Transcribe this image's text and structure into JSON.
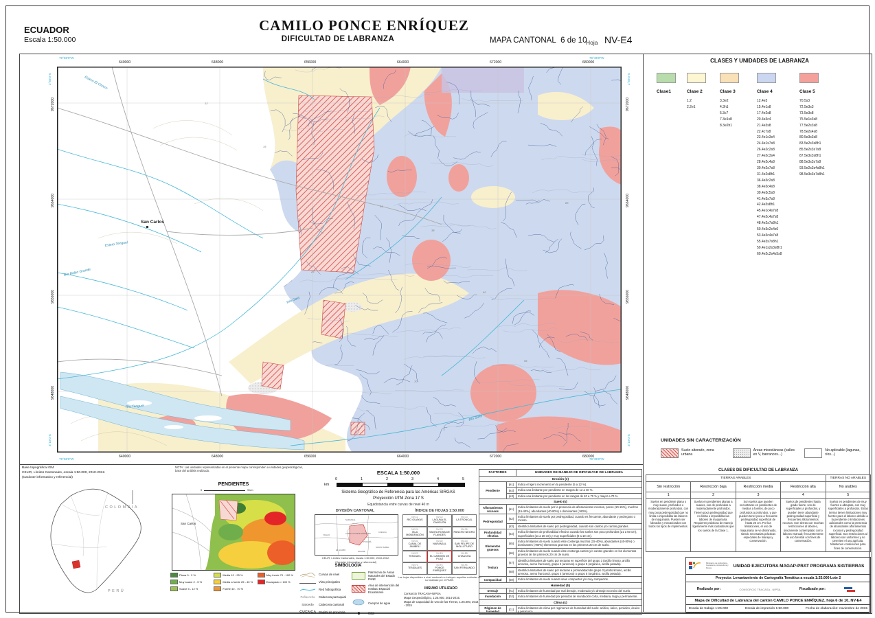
{
  "header": {
    "country": "ECUADOR",
    "country_scale": "Escala 1:50.000",
    "title": "CAMILO PONCE ENRÍQUEZ",
    "subtitle": "DIFICULTAD DE LABRANZA",
    "map_type": "MAPA CANTONAL",
    "sheet_count": "6 de 10",
    "sheet_label": "Hoja",
    "sheet_code": "NV-E4"
  },
  "map": {
    "eastings": [
      "640000",
      "648000",
      "656000",
      "664000",
      "672000",
      "680000"
    ],
    "northings": [
      "9672000",
      "9664000",
      "9656000",
      "9648000"
    ],
    "geo_corners": {
      "nw_lon": "79°55'0\"W",
      "ne_lon": "79°35'0\"W",
      "n_lat": "2°55'0\"S",
      "s_lat": "3°15'0\"S"
    },
    "places": [
      "San Carlos"
    ],
    "rivers": [
      "Estero El Chorro",
      "Estero Tenguel",
      "Río Balao Grande",
      "Río Gala",
      "Río Tenguel",
      "Río Siete"
    ],
    "unit_labels": [
      "12",
      "15",
      "17",
      "21",
      "26",
      "38",
      "42",
      "55",
      "70",
      "83"
    ]
  },
  "legend": {
    "title": "CLASES Y UNIDADES DE LABRANZA",
    "classes": [
      {
        "name": "Clase1",
        "color": "#b8dcab",
        "units": []
      },
      {
        "name": "Clase 2",
        "color": "#fdf6d2",
        "units": [
          "1.2",
          "2.2e1"
        ]
      },
      {
        "name": "Clase 3",
        "color": "#f9e0b6",
        "units": [
          "3.3e2",
          "4.3h1",
          "5.3c7",
          "7.3e1s8",
          "8.3e2h1"
        ]
      },
      {
        "name": "Clase 4",
        "color": "#cbd7f0",
        "units": [
          "12.4e3",
          "15.4e1s8",
          "17.4e2s8",
          "20.4e3c4",
          "21.4e3s8",
          "22.4c7s8",
          "23.4e1c3s4",
          "24.4e1s7s8",
          "26.4e2c2s8",
          "27.4e2c3s4",
          "28.4e2c4s8",
          "30.4e2s7s8",
          "31.4e2s8h1",
          "36.4e3c2s8",
          "38.4e3c4s8",
          "39.4e3c5s8",
          "41.4e3s7s8",
          "42.4e3s8h1",
          "45.4e1c4s7s8",
          "47.4e2c4s7s8",
          "48.4e2s7s8h1",
          "50.4e3c2c4s6",
          "53.4e3c4s7s8",
          "55.4e3s7s8h1",
          "59.4e1s2s3s8h1",
          "60.4e2c2s4s5s8"
        ]
      },
      {
        "name": "Clase 5",
        "color": "#f4a09b",
        "units": [
          "70.5s3",
          "72.5e3s3",
          "73.5e3s8",
          "75.5e1s3s8",
          "77.5e2s3s8",
          "78.5e2s4s8",
          "80.5e3s3s8",
          "83.5e2s3s8h1",
          "85.5e2s3s7s8",
          "87.5e3s3s8h1",
          "88.5e3s3s7s8",
          "93.5e2s3s4s8h1",
          "98.5e3s3s7s8h1"
        ]
      }
    ]
  },
  "sin_caracterizacion": {
    "title": "UNIDADES SIN CARACTERIZACIÓN",
    "items": [
      {
        "pattern": "hatch",
        "label": "Suelo alterado, zona urbana"
      },
      {
        "pattern": "stipple",
        "label": "Áreas misceláneas (valles en V, barrancos...)"
      },
      {
        "pattern": "none",
        "label": "No aplicable (lagunas, ríos...)"
      }
    ]
  },
  "clases_dificultad": {
    "title": "CLASES DE DIFICULTAD DE LABRANZA",
    "group_arables": "TIERRAS ARABLES",
    "group_no_arables": "TIERRAS NO ARABLES",
    "columns": [
      {
        "name": "Sin restricción",
        "num": "1",
        "desc": "Suelos en pendiente plana o muy suave, profundos o moderadamente profundos, con muy poca pedregosidad que no limita o imposibilita las labores de maquinaria. Pueden ser labrados y mecanizados con todos los tipos de implementos."
      },
      {
        "name": "Restricción baja",
        "num": "2",
        "desc": "Suelos en pendientes planas a suaves, son de profundos a moderadamente profundos. Tienen poca pedregosidad que no limita o imposibilita las labores de maquinaria. Requieren prácticas de manejo ligeramente más cuidadosas que los suelos de la Clase 1."
      },
      {
        "name": "Restricción media",
        "num": "3",
        "desc": "Son suelos que pueden encontrarse en pendientes de medias a fuertes, de poco profundos a profundos, y que pueden tener poca a frecuente pedregosidad superficial de hasta 20 cm. Por las limitaciones, el uso de maquinaria se ve disminuido, siendo necesarias prácticas especiales de manejo y conservación."
      },
      {
        "name": "Restricción alta",
        "num": "4",
        "desc": "Suelos de pendientes hasta grado fuerte, son de superficiales a profundos, y pueden tener abundante pedregosidad superficial y frecuentes afloramientos rocosos. Son tierras con muchas restricciones al laboreo, únicamente contemplado como laboreo manual; frecuentemente de uso forestal con fines de conservación."
      },
      {
        "name": "No arables",
        "num": "5",
        "desc": "Suelos en pendientes de muy fuertes a abruptas, con muy superficiales a profundos. Estas tierras tienen limitaciones muy fuertes para el laboreo debido a la pendiente o limitaciones adicionales como la presencia de abundantes afloramientos rocosos y pedregosidad superficial. Sus restricciones al laboreo son uniformes y no permiten el uso agrícola. Mantienen condiciones para fines de conservación."
      }
    ]
  },
  "factores": {
    "header_left": "FACTORES",
    "header_right": "UNIDADES DE MANEJO DE DIFICULTAD DE LABRANZA",
    "sections": [
      {
        "section": "Erosión (e)",
        "rows": [
          {
            "factor": "Pendiente",
            "code": "(e1)",
            "desc": "Indica el ligero incremento en la pendiente (5 a 12 %)."
          },
          {
            "factor": "",
            "code": "(e2)",
            "desc": "Indica una limitante por pendiente en rangos de 12 a 40 %."
          },
          {
            "factor": "",
            "code": "(e3)",
            "desc": "Indica una limitante por pendiente en los rangos de 40 a 70 % y mayor a 70 %."
          }
        ]
      },
      {
        "section": "Suelo (s)",
        "rows": [
          {
            "factor": "Afloramientos rocosos",
            "code": "(s1)",
            "desc": "Indica limitantes de suelo por la presencia de afloramientos rocosos, pocos (10-15%), muchos (15-40%), abundantes (40-80%) o dominantes (>80%)."
          },
          {
            "factor": "Pedregosidad",
            "code": "(s2)",
            "desc": "Indica limitantes de suelo por pedregosidad, cuando es frecuente, abundante y pedregoso o rocoso."
          },
          {
            "factor": "",
            "code": "(s3)",
            "desc": "Identifica limitantes de suelo por pedregosidad, cuando son cantos y/o cantos grandes."
          },
          {
            "factor": "Profundidad efectiva",
            "code": "(s4)",
            "desc": "Indica limitantes de profundidad efectiva cuando los suelos son poco profundos (21 a 50 cm), superficiales (11 a 20 cm) y muy superficiales (0 a 10 cm)."
          },
          {
            "factor": "Elementos gruesos",
            "code": "(s5)",
            "desc": "Indica limitantes de suelo cuando éste contenga muchos (15-40%), abundantes (40-80%) o dominantes (>80%) elementos gruesos en los primeros 20 cm de suelo."
          },
          {
            "factor": "",
            "code": "(s6)",
            "desc": "Indica limitantes de suelo cuando éste contenga cantos y/o cantos grandes en los elementos gruesos de los primeros 20 cm de suelo."
          },
          {
            "factor": "Textura",
            "code": "(s7)",
            "desc": "Identifica limitantes de suelo por texturas en superficie del grupo 3 (arcillo limoso, arcillo arenoso, areno francoso), grupo 4 (arenoso) o grupo 5 (orgánico, arcilla pesada)."
          },
          {
            "factor": "",
            "code": "(s8)",
            "desc": "Identifica limitantes de suelo por texturas a profundidad del grupo 3 (arcillo limoso, arcillo arenoso, areno francoso), grupo 4 (arenoso) o grupo 5 (orgánico, arcilla pesada)."
          },
          {
            "factor": "Compacidad",
            "code": "(s9)",
            "desc": "Indica limitantes de suelo cuando sean compactos y/o muy compactos."
          }
        ]
      },
      {
        "section": "Humedad (h)",
        "rows": [
          {
            "factor": "Drenaje",
            "code": "(h1)",
            "desc": "Indica limitantes de humedad por mal drenaje, moderado y/o drenaje excesivo del suelo."
          },
          {
            "factor": "Inundación",
            "code": "(h2)",
            "desc": "Indica limitantes de humedad por periodos de inundación corta, mediana, larga y permanente."
          }
        ]
      },
      {
        "section": "Clima (c)",
        "rows": [
          {
            "factor": "Régimen de humedad",
            "code": "(c1)",
            "desc": "Indica limitantes de clima por regímenes de humedad del suelo: arídico, údico, perúdico, ácuico y perácuico."
          }
        ]
      }
    ]
  },
  "escala": {
    "title": "ESCALA 1:50.000",
    "unit": "km",
    "ticks": [
      "0",
      "1",
      "2",
      "3",
      "4",
      "5"
    ],
    "ref1": "Sistema Geográfico de Referencia para las Américas SIRGAS",
    "ref2": "Proyección UTM Zona 17 S",
    "ref3": "Equidistancia entre curvas de nivel 40 m"
  },
  "division_cantonal": {
    "title": "DIVISIÓN CANTONAL",
    "caption1": "CELIR, Límites Cantonales, escala 1:50.000, 2010-2012.",
    "caption2": "(Carácter informativo y referencial)",
    "labels": [
      "NARANJAL",
      "CUENCA",
      "CAMILO PONCE ENRÍQUEZ",
      "BALAO",
      "EL GUABO",
      "PASAJE",
      "SANTA ISABEL",
      "PUCARÁ"
    ]
  },
  "indice_hojas": {
    "title": "ÍNDICE DE HOJAS 1:50.000",
    "rows": [
      [
        {
          "code": "NV-C1",
          "name": "RÍO GUAYAS"
        },
        {
          "code": "NV-C2",
          "name": "LAGUNA EL CANCLÓN"
        },
        {
          "code": "NV-C3",
          "name": "LA TRONCAL"
        }
      ],
      [
        {
          "code": "NV-C4",
          "name": "ISLA MONDRAGÓN"
        },
        {
          "code": "NV-C5",
          "name": "SANTA ROSA DE FLANDES"
        },
        {
          "code": "NV-C6",
          "name": "PANCHO NEGRO"
        }
      ],
      [
        {
          "code": "NV-D1",
          "name": "CANAL DE JAMBELÍ"
        },
        {
          "code": "NV-D2",
          "name": "NARANJAL"
        },
        {
          "code": "NV-D3",
          "name": "SAN FELIPE DE MOLLETURO"
        }
      ],
      [
        {
          "code": "NV-E3",
          "name": "TENGUEL"
        },
        {
          "code": "NV-E4",
          "name": "EL CARMEN DE PIJILÍ",
          "highlight": true
        },
        {
          "code": "NV-E5",
          "name": "CHAUCHA"
        }
      ],
      [
        {
          "code": "NV-F3",
          "name": "TENDALES"
        },
        {
          "code": "NV-F4",
          "name": "PONCE ENRÍQUEZ"
        },
        {
          "code": "NV-F5",
          "name": "SAN FERNANDO"
        }
      ]
    ],
    "note": "Las hojas disponibles a nivel cantonal no incluyen aquellas cubiertas en su totalidad por el PANE."
  },
  "simbologia": {
    "title": "SIMBOLOGÍA",
    "left": [
      {
        "sym": "contour",
        "label": "Curvas de nivel"
      },
      {
        "sym": "road",
        "label": "Vías principales"
      },
      {
        "sym": "river",
        "label": "Red hidrográfica"
      },
      {
        "sym": "parroquial",
        "example": "Pañacocha",
        "label": "Cabecera parroquial"
      },
      {
        "sym": "cantonal",
        "example": "Salcedo",
        "label": "Cabecera cantonal"
      },
      {
        "sym": "capital",
        "example": "CUENCA",
        "label": "Capital de provincia"
      }
    ],
    "right": [
      {
        "sym": "pane",
        "label": "Patrimonio de Áreas Naturales del Estado PANE"
      },
      {
        "sym": "iee",
        "label": "Área de intervención del Instituto Espacial Ecuatoriano"
      },
      {
        "sym": "agua",
        "label": "Cuerpos de agua"
      },
      {
        "sym": "cota",
        "label": "Cota"
      }
    ]
  },
  "insumo": {
    "title": "INSUMO UTILIZADO",
    "lines": [
      "Consorcio TRACASA-NIPSA",
      "Mapa Geopedológico, 1:25.000, 2014-2015.",
      "Mapa de Capacidad de Uso de las Tierras, 1:25.000, 2014 - 2015"
    ]
  },
  "pendientes": {
    "title": "PENDIENTES",
    "place_label": "San Carlos",
    "scale_left": "0",
    "scale_right": "5 km",
    "columns": [
      [
        {
          "color": "#4a8b3c",
          "label": "Plana 0 - 2 %"
        },
        {
          "color": "#6fae4a",
          "label": "Muy suave 2 - 5 %"
        },
        {
          "color": "#9cc34b",
          "label": "Suave 5 - 12 %"
        }
      ],
      [
        {
          "color": "#d6df47",
          "label": "Media 12 - 25 %"
        },
        {
          "color": "#f5cf3d",
          "label": "Media a fuerte 25 - 40 %"
        },
        {
          "color": "#f0962f",
          "label": "Fuerte 40 - 70 %"
        }
      ],
      [
        {
          "color": "#ec5f28",
          "label": "Muy fuerte 70 - 100 %"
        },
        {
          "color": "#e42528",
          "label": "Escarpado > 100 %"
        }
      ]
    ]
  },
  "base_info": {
    "line1": "Base topográfica IGM",
    "line2": "CELIR, Límites Cantonales, escala 1:50.000, 2010-2012.",
    "line3": "(Carácter informativo y referencial)",
    "nota": "NOTA: Las unidades representadas en el presente mapa corresponden a unidades geopedológicas, base del análisis realizado."
  },
  "ecuador_inset": {
    "north_country": "COLOMBIA",
    "south_country": "PERÚ"
  },
  "footer": {
    "org": "UNIDAD EJECUTORA MAGAP-PRAT PROGRAMA SIGTIERRAS",
    "org_logo_text": "Ministerio de Agricultura, Ganadería, Acuacultura y Pesca",
    "proyecto": "Proyecto:  Levantamiento de Cartografía Temática a escala 1:25.000  Lote 2",
    "realizado_label": "Realizado por:",
    "realizado_logo": "CONSORCIO TRACASA - NIPSA",
    "fiscalizado_label": "Fiscalizado por:",
    "mapa": "Mapa de Dificultad de Labranza del cantón CAMILO PONCE ENRÍQUEZ, hoja 6 de 10, NV-E4",
    "escala_trabajo": "Escala de trabajo 1:25.000",
    "escala_impresion": "Escala de impresión 1:50.000",
    "fecha": "Fecha de elaboración: noviembre de 2015"
  }
}
